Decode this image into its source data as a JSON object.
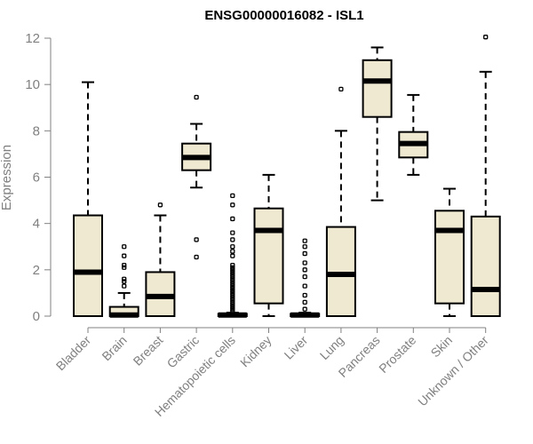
{
  "chart_data": {
    "type": "boxplot",
    "title": "ENSG00000016082 - ISL1",
    "xlabel": "",
    "ylabel": "Expression",
    "ylim": [
      0,
      12
    ],
    "yticks": [
      0,
      2,
      4,
      6,
      8,
      10,
      12
    ],
    "colors": {
      "box_fill": "#efe9d2",
      "stroke": "#000000",
      "axis": "#808080"
    },
    "categories": [
      "Bladder",
      "Brain",
      "Breast",
      "Gastric",
      "Hematopoietic cells",
      "Kidney",
      "Liver",
      "Lung",
      "Pancreas",
      "Prostate",
      "Skin",
      "Unknown / Other"
    ],
    "boxes": [
      {
        "name": "Bladder",
        "min": 0,
        "q1": 0,
        "median": 1.9,
        "q3": 4.35,
        "max": 10.1,
        "outliers": []
      },
      {
        "name": "Brain",
        "min": 0,
        "q1": 0,
        "median": 0.05,
        "q3": 0.4,
        "max": 1.0,
        "outliers": [
          1.3,
          1.5,
          1.6,
          2.1,
          2.2,
          2.6,
          3.0
        ]
      },
      {
        "name": "Breast",
        "min": 0,
        "q1": 0,
        "median": 0.85,
        "q3": 1.9,
        "max": 4.35,
        "outliers": [
          4.8
        ]
      },
      {
        "name": "Gastric",
        "min": 5.55,
        "q1": 6.3,
        "median": 6.85,
        "q3": 7.45,
        "max": 8.3,
        "outliers": [
          9.45,
          3.3,
          2.55
        ]
      },
      {
        "name": "Hematopoietic cells",
        "min": 0,
        "q1": 0,
        "median": 0.05,
        "q3": 0.1,
        "max": 0.15,
        "outliers": [
          0.2,
          0.3,
          0.4,
          0.5,
          0.6,
          0.7,
          0.8,
          0.9,
          1.0,
          1.1,
          1.2,
          1.3,
          1.4,
          1.5,
          1.6,
          1.7,
          1.8,
          1.9,
          2.0,
          2.1,
          2.2,
          2.6,
          2.8,
          3.0,
          3.3,
          3.6,
          4.2,
          4.8,
          5.2
        ]
      },
      {
        "name": "Kidney",
        "min": 0,
        "q1": 0.55,
        "median": 3.7,
        "q3": 4.65,
        "max": 6.1,
        "outliers": []
      },
      {
        "name": "Liver",
        "min": 0,
        "q1": 0,
        "median": 0.05,
        "q3": 0.1,
        "max": 0.15,
        "outliers": [
          0.3,
          0.6,
          0.9,
          1.3,
          1.7,
          2.0,
          2.3,
          2.7,
          3.0,
          3.25
        ]
      },
      {
        "name": "Lung",
        "min": 0,
        "q1": 0,
        "median": 1.8,
        "q3": 3.85,
        "max": 8.0,
        "outliers": [
          9.8
        ]
      },
      {
        "name": "Pancreas",
        "min": 5.0,
        "q1": 8.6,
        "median": 10.15,
        "q3": 11.05,
        "max": 11.6,
        "outliers": []
      },
      {
        "name": "Prostate",
        "min": 6.1,
        "q1": 6.85,
        "median": 7.45,
        "q3": 7.95,
        "max": 9.55,
        "outliers": []
      },
      {
        "name": "Skin",
        "min": 0,
        "q1": 0.55,
        "median": 3.7,
        "q3": 4.55,
        "max": 5.5,
        "outliers": []
      },
      {
        "name": "Unknown / Other",
        "min": 0,
        "q1": 0,
        "median": 1.15,
        "q3": 4.3,
        "max": 10.55,
        "outliers": [
          12.05
        ]
      }
    ]
  }
}
